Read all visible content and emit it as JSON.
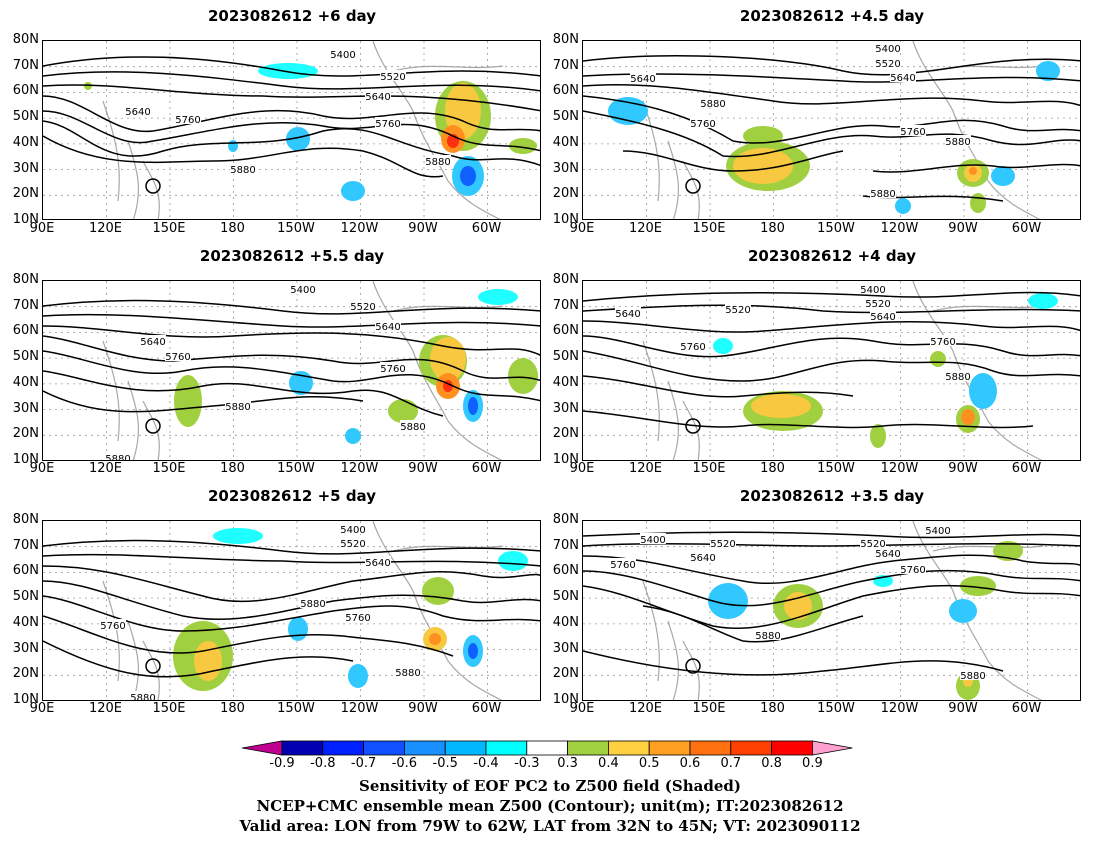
{
  "panels": [
    {
      "title": "2023082612 +6 day",
      "contours": [
        "5400",
        "5520",
        "5640",
        "5640",
        "5760",
        "5760",
        "5880",
        "5880"
      ]
    },
    {
      "title": "2023082612 +4.5 day",
      "contours": [
        "5400",
        "5520",
        "5640",
        "5640",
        "5760",
        "5760",
        "5880",
        "5880",
        "5880"
      ]
    },
    {
      "title": "2023082612 +5.5 day",
      "contours": [
        "5400",
        "5520",
        "5640",
        "5640",
        "5760",
        "5760",
        "5880",
        "5880",
        "5880"
      ]
    },
    {
      "title": "2023082612 +4 day",
      "contours": [
        "5400",
        "5520",
        "5520",
        "5640",
        "5640",
        "5760",
        "5760",
        "5880"
      ]
    },
    {
      "title": "2023082612 +5 day",
      "contours": [
        "5400",
        "5520",
        "5640",
        "5880",
        "5760",
        "5760",
        "5880",
        "5880"
      ]
    },
    {
      "title": "2023082612 +3.5 day",
      "contours": [
        "5400",
        "5400",
        "5520",
        "5520",
        "5640",
        "5640",
        "5760",
        "5760",
        "5880",
        "5880"
      ]
    }
  ],
  "lat_labels": [
    "80N",
    "70N",
    "60N",
    "50N",
    "40N",
    "30N",
    "20N",
    "10N"
  ],
  "lon_labels": [
    "90E",
    "120E",
    "150E",
    "180",
    "150W",
    "120W",
    "90W",
    "60W"
  ],
  "colorbar": {
    "labels": [
      "-0.9",
      "-0.8",
      "-0.7",
      "-0.6",
      "-0.5",
      "-0.4",
      "-0.3",
      "0.3",
      "0.4",
      "0.5",
      "0.6",
      "0.7",
      "0.8",
      "0.9"
    ],
    "colors": [
      "#c00090",
      "#0000b0",
      "#0020ff",
      "#1050ff",
      "#1890ff",
      "#00b8ff",
      "#00ffff",
      "#ffffff",
      "#a0d040",
      "#ffd040",
      "#ffa020",
      "#ff7010",
      "#ff4000",
      "#ff0000",
      "#ffa0d0"
    ]
  },
  "captions": [
    "Sensitivity of EOF PC2 to Z500 field (Shaded)",
    "NCEP+CMC ensemble mean Z500 (Contour); unit(m); IT:2023082612",
    "Valid area: LON from 79W to 62W, LAT from 32N to 45N; VT: 2023090112"
  ]
}
